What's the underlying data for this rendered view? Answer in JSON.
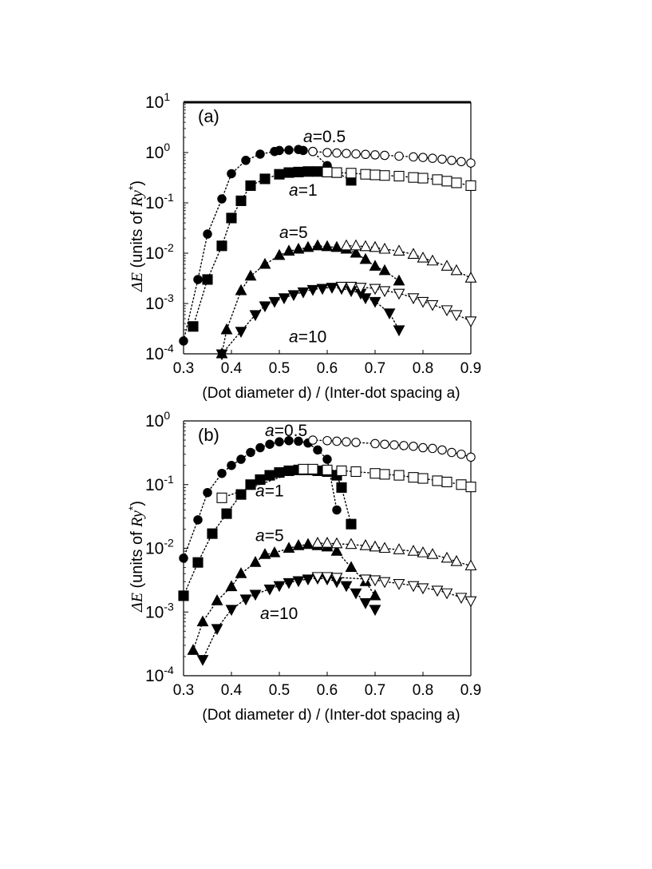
{
  "chart_data": [
    {
      "type": "scatter",
      "panel_label": "(a)",
      "xlabel": "(Dot diameter d) / (Inter-dot spacing a)",
      "ylabel_prefix": "ΔE",
      "ylabel_main": " (units of ",
      "ylabel_ry": "Ry",
      "ylabel_sup": "*",
      "ylabel_close": ")",
      "xscale": "linear",
      "yscale": "log",
      "xlim": [
        0.3,
        0.9
      ],
      "ylim": [
        0.0001,
        10
      ],
      "xticks": [
        "0.3",
        "0.4",
        "0.5",
        "0.6",
        "0.7",
        "0.8",
        "0.9"
      ],
      "yticks": [
        {
          "base": "10",
          "exp": "-4"
        },
        {
          "base": "10",
          "exp": "-3"
        },
        {
          "base": "10",
          "exp": "-2"
        },
        {
          "base": "10",
          "exp": "-1"
        },
        {
          "base": "10",
          "exp": "0"
        },
        {
          "base": "10",
          "exp": "1"
        }
      ],
      "series_labels": [
        {
          "text": "a=0.5",
          "x": 0.55,
          "y": 1.6
        },
        {
          "text": "a=1",
          "x": 0.52,
          "y": 0.14
        },
        {
          "text": "a=5",
          "x": 0.5,
          "y": 0.02
        },
        {
          "text": "a=10",
          "x": 0.52,
          "y": 0.00017
        }
      ],
      "series": [
        {
          "label": "a=0.5",
          "marker": "circle",
          "filled": true,
          "x": [
            0.3,
            0.33,
            0.35,
            0.38,
            0.4,
            0.43,
            0.46,
            0.49,
            0.5,
            0.52,
            0.54,
            0.55,
            0.57,
            0.6
          ],
          "y": [
            0.00018,
            0.003,
            0.024,
            0.12,
            0.38,
            0.7,
            0.93,
            1.05,
            1.1,
            1.12,
            1.15,
            1.1,
            1.05,
            0.55
          ]
        },
        {
          "label": "a=0.5",
          "marker": "circle",
          "filled": false,
          "x": [
            0.57,
            0.6,
            0.62,
            0.64,
            0.66,
            0.68,
            0.7,
            0.72,
            0.75,
            0.78,
            0.8,
            0.82,
            0.84,
            0.86,
            0.88,
            0.9
          ],
          "y": [
            1.05,
            1.0,
            0.98,
            0.96,
            0.94,
            0.92,
            0.9,
            0.88,
            0.85,
            0.82,
            0.8,
            0.77,
            0.74,
            0.7,
            0.66,
            0.62
          ]
        },
        {
          "label": "a=1",
          "marker": "square",
          "filled": true,
          "x": [
            0.32,
            0.35,
            0.38,
            0.4,
            0.42,
            0.44,
            0.47,
            0.5,
            0.52,
            0.54,
            0.56,
            0.58,
            0.6,
            0.62,
            0.65
          ],
          "y": [
            0.00035,
            0.003,
            0.014,
            0.05,
            0.11,
            0.22,
            0.3,
            0.37,
            0.4,
            0.41,
            0.42,
            0.42,
            0.41,
            0.4,
            0.28
          ]
        },
        {
          "label": "a=1",
          "marker": "square",
          "filled": false,
          "x": [
            0.6,
            0.62,
            0.65,
            0.68,
            0.7,
            0.72,
            0.75,
            0.78,
            0.8,
            0.83,
            0.85,
            0.87,
            0.9
          ],
          "y": [
            0.41,
            0.4,
            0.39,
            0.37,
            0.36,
            0.35,
            0.34,
            0.32,
            0.31,
            0.29,
            0.27,
            0.25,
            0.22
          ]
        },
        {
          "label": "a=5",
          "marker": "triangle-up",
          "filled": true,
          "x": [
            0.38,
            0.39,
            0.42,
            0.44,
            0.47,
            0.5,
            0.52,
            0.54,
            0.56,
            0.58,
            0.6,
            0.62,
            0.64,
            0.66,
            0.68,
            0.7,
            0.72,
            0.75
          ],
          "y": [
            0.0001,
            0.0003,
            0.0018,
            0.0035,
            0.006,
            0.009,
            0.011,
            0.012,
            0.013,
            0.014,
            0.0135,
            0.013,
            0.012,
            0.01,
            0.0075,
            0.0055,
            0.0045,
            0.0028
          ]
        },
        {
          "label": "a=5",
          "marker": "triangle-up",
          "filled": false,
          "x": [
            0.64,
            0.66,
            0.68,
            0.7,
            0.72,
            0.75,
            0.78,
            0.8,
            0.82,
            0.85,
            0.87,
            0.9
          ],
          "y": [
            0.014,
            0.014,
            0.0135,
            0.013,
            0.012,
            0.011,
            0.0095,
            0.008,
            0.007,
            0.0055,
            0.0045,
            0.0032
          ]
        },
        {
          "label": "a=10",
          "marker": "triangle-down",
          "filled": true,
          "x": [
            0.38,
            0.42,
            0.45,
            0.47,
            0.49,
            0.51,
            0.53,
            0.55,
            0.57,
            0.59,
            0.61,
            0.63,
            0.65,
            0.67,
            0.68,
            0.7,
            0.73,
            0.75
          ],
          "y": [
            8.5e-05,
            0.00028,
            0.0006,
            0.0009,
            0.0011,
            0.0013,
            0.0015,
            0.0017,
            0.0019,
            0.002,
            0.0021,
            0.002,
            0.0018,
            0.0016,
            0.0013,
            0.0011,
            0.00065,
            0.0003
          ]
        },
        {
          "label": "a=10",
          "marker": "triangle-down",
          "filled": false,
          "x": [
            0.63,
            0.65,
            0.67,
            0.7,
            0.72,
            0.75,
            0.78,
            0.8,
            0.82,
            0.85,
            0.87,
            0.9
          ],
          "y": [
            0.0022,
            0.0022,
            0.0021,
            0.002,
            0.0018,
            0.0016,
            0.0013,
            0.0011,
            0.00095,
            0.00075,
            0.0006,
            0.00045
          ]
        }
      ]
    },
    {
      "type": "scatter",
      "panel_label": "(b)",
      "xlabel": "(Dot diameter d) / (Inter-dot spacing a)",
      "ylabel_prefix": "ΔE",
      "ylabel_main": " (units of ",
      "ylabel_ry": "Ry",
      "ylabel_sup": "*",
      "ylabel_close": ")",
      "xscale": "linear",
      "yscale": "log",
      "xlim": [
        0.3,
        0.9
      ],
      "ylim": [
        0.0001,
        1
      ],
      "xticks": [
        "0.3",
        "0.4",
        "0.5",
        "0.6",
        "0.7",
        "0.8",
        "0.9"
      ],
      "yticks": [
        {
          "base": "10",
          "exp": "-4"
        },
        {
          "base": "10",
          "exp": "-3"
        },
        {
          "base": "10",
          "exp": "-2"
        },
        {
          "base": "10",
          "exp": "-1"
        },
        {
          "base": "10",
          "exp": "0"
        }
      ],
      "series_labels": [
        {
          "text": "a=0.5",
          "x": 0.47,
          "y": 0.58
        },
        {
          "text": "a=1",
          "x": 0.45,
          "y": 0.065
        },
        {
          "text": "a=5",
          "x": 0.45,
          "y": 0.013
        },
        {
          "text": "a=10",
          "x": 0.46,
          "y": 0.00078
        }
      ],
      "series": [
        {
          "label": "a=0.5",
          "marker": "circle",
          "filled": true,
          "x": [
            0.3,
            0.33,
            0.35,
            0.38,
            0.4,
            0.42,
            0.44,
            0.46,
            0.48,
            0.5,
            0.52,
            0.54,
            0.56,
            0.58,
            0.6,
            0.62
          ],
          "y": [
            0.007,
            0.028,
            0.075,
            0.15,
            0.2,
            0.25,
            0.32,
            0.38,
            0.43,
            0.47,
            0.49,
            0.48,
            0.45,
            0.35,
            0.25,
            0.04
          ]
        },
        {
          "label": "a=0.5",
          "marker": "circle",
          "filled": false,
          "x": [
            0.57,
            0.6,
            0.62,
            0.64,
            0.66,
            0.7,
            0.72,
            0.74,
            0.76,
            0.78,
            0.8,
            0.82,
            0.84,
            0.86,
            0.88,
            0.9
          ],
          "y": [
            0.5,
            0.49,
            0.48,
            0.47,
            0.46,
            0.44,
            0.43,
            0.42,
            0.41,
            0.4,
            0.38,
            0.37,
            0.35,
            0.32,
            0.3,
            0.27
          ]
        },
        {
          "label": "a=1",
          "marker": "square",
          "filled": true,
          "x": [
            0.3,
            0.33,
            0.36,
            0.39,
            0.42,
            0.44,
            0.46,
            0.48,
            0.5,
            0.52,
            0.54,
            0.56,
            0.58,
            0.6,
            0.62,
            0.63,
            0.65
          ],
          "y": [
            0.0018,
            0.006,
            0.017,
            0.035,
            0.07,
            0.1,
            0.12,
            0.14,
            0.155,
            0.165,
            0.17,
            0.17,
            0.165,
            0.16,
            0.14,
            0.09,
            0.024
          ]
        },
        {
          "label": "a=1",
          "marker": "square",
          "filled": false,
          "x": [
            0.38,
            0.55,
            0.57,
            0.6,
            0.63,
            0.66,
            0.7,
            0.72,
            0.75,
            0.78,
            0.8,
            0.83,
            0.85,
            0.88,
            0.9
          ],
          "y": [
            0.062,
            0.175,
            0.175,
            0.17,
            0.165,
            0.16,
            0.15,
            0.145,
            0.14,
            0.13,
            0.125,
            0.115,
            0.11,
            0.1,
            0.092
          ]
        },
        {
          "label": "a=5",
          "marker": "triangle-up",
          "filled": true,
          "x": [
            0.32,
            0.34,
            0.37,
            0.4,
            0.42,
            0.45,
            0.47,
            0.49,
            0.52,
            0.54,
            0.56,
            0.58,
            0.6,
            0.62,
            0.65,
            0.68,
            0.7
          ],
          "y": [
            0.00025,
            0.0007,
            0.0015,
            0.0025,
            0.004,
            0.006,
            0.008,
            0.0085,
            0.01,
            0.011,
            0.0115,
            0.011,
            0.0105,
            0.009,
            0.005,
            0.003,
            0.0018
          ]
        },
        {
          "label": "a=5",
          "marker": "triangle-up",
          "filled": false,
          "x": [
            0.58,
            0.6,
            0.62,
            0.65,
            0.68,
            0.7,
            0.72,
            0.75,
            0.78,
            0.8,
            0.82,
            0.85,
            0.87,
            0.9
          ],
          "y": [
            0.012,
            0.012,
            0.0118,
            0.0115,
            0.011,
            0.0105,
            0.01,
            0.0095,
            0.009,
            0.0085,
            0.008,
            0.007,
            0.0062,
            0.0053
          ]
        },
        {
          "label": "a=10",
          "marker": "triangle-down",
          "filled": true,
          "x": [
            0.34,
            0.37,
            0.4,
            0.43,
            0.45,
            0.48,
            0.5,
            0.52,
            0.54,
            0.56,
            0.58,
            0.6,
            0.62,
            0.64,
            0.66,
            0.68,
            0.7
          ],
          "y": [
            0.00018,
            0.00055,
            0.0011,
            0.0016,
            0.0019,
            0.0023,
            0.0026,
            0.0029,
            0.0031,
            0.0033,
            0.0034,
            0.0033,
            0.003,
            0.0026,
            0.002,
            0.0014,
            0.0011
          ]
        },
        {
          "label": "a=10",
          "marker": "triangle-down",
          "filled": false,
          "x": [
            0.58,
            0.6,
            0.62,
            0.68,
            0.7,
            0.72,
            0.75,
            0.78,
            0.8,
            0.83,
            0.85,
            0.88,
            0.9
          ],
          "y": [
            0.0036,
            0.0036,
            0.0035,
            0.0033,
            0.0032,
            0.003,
            0.0028,
            0.0026,
            0.0024,
            0.0022,
            0.002,
            0.0017,
            0.0015
          ]
        }
      ]
    }
  ]
}
